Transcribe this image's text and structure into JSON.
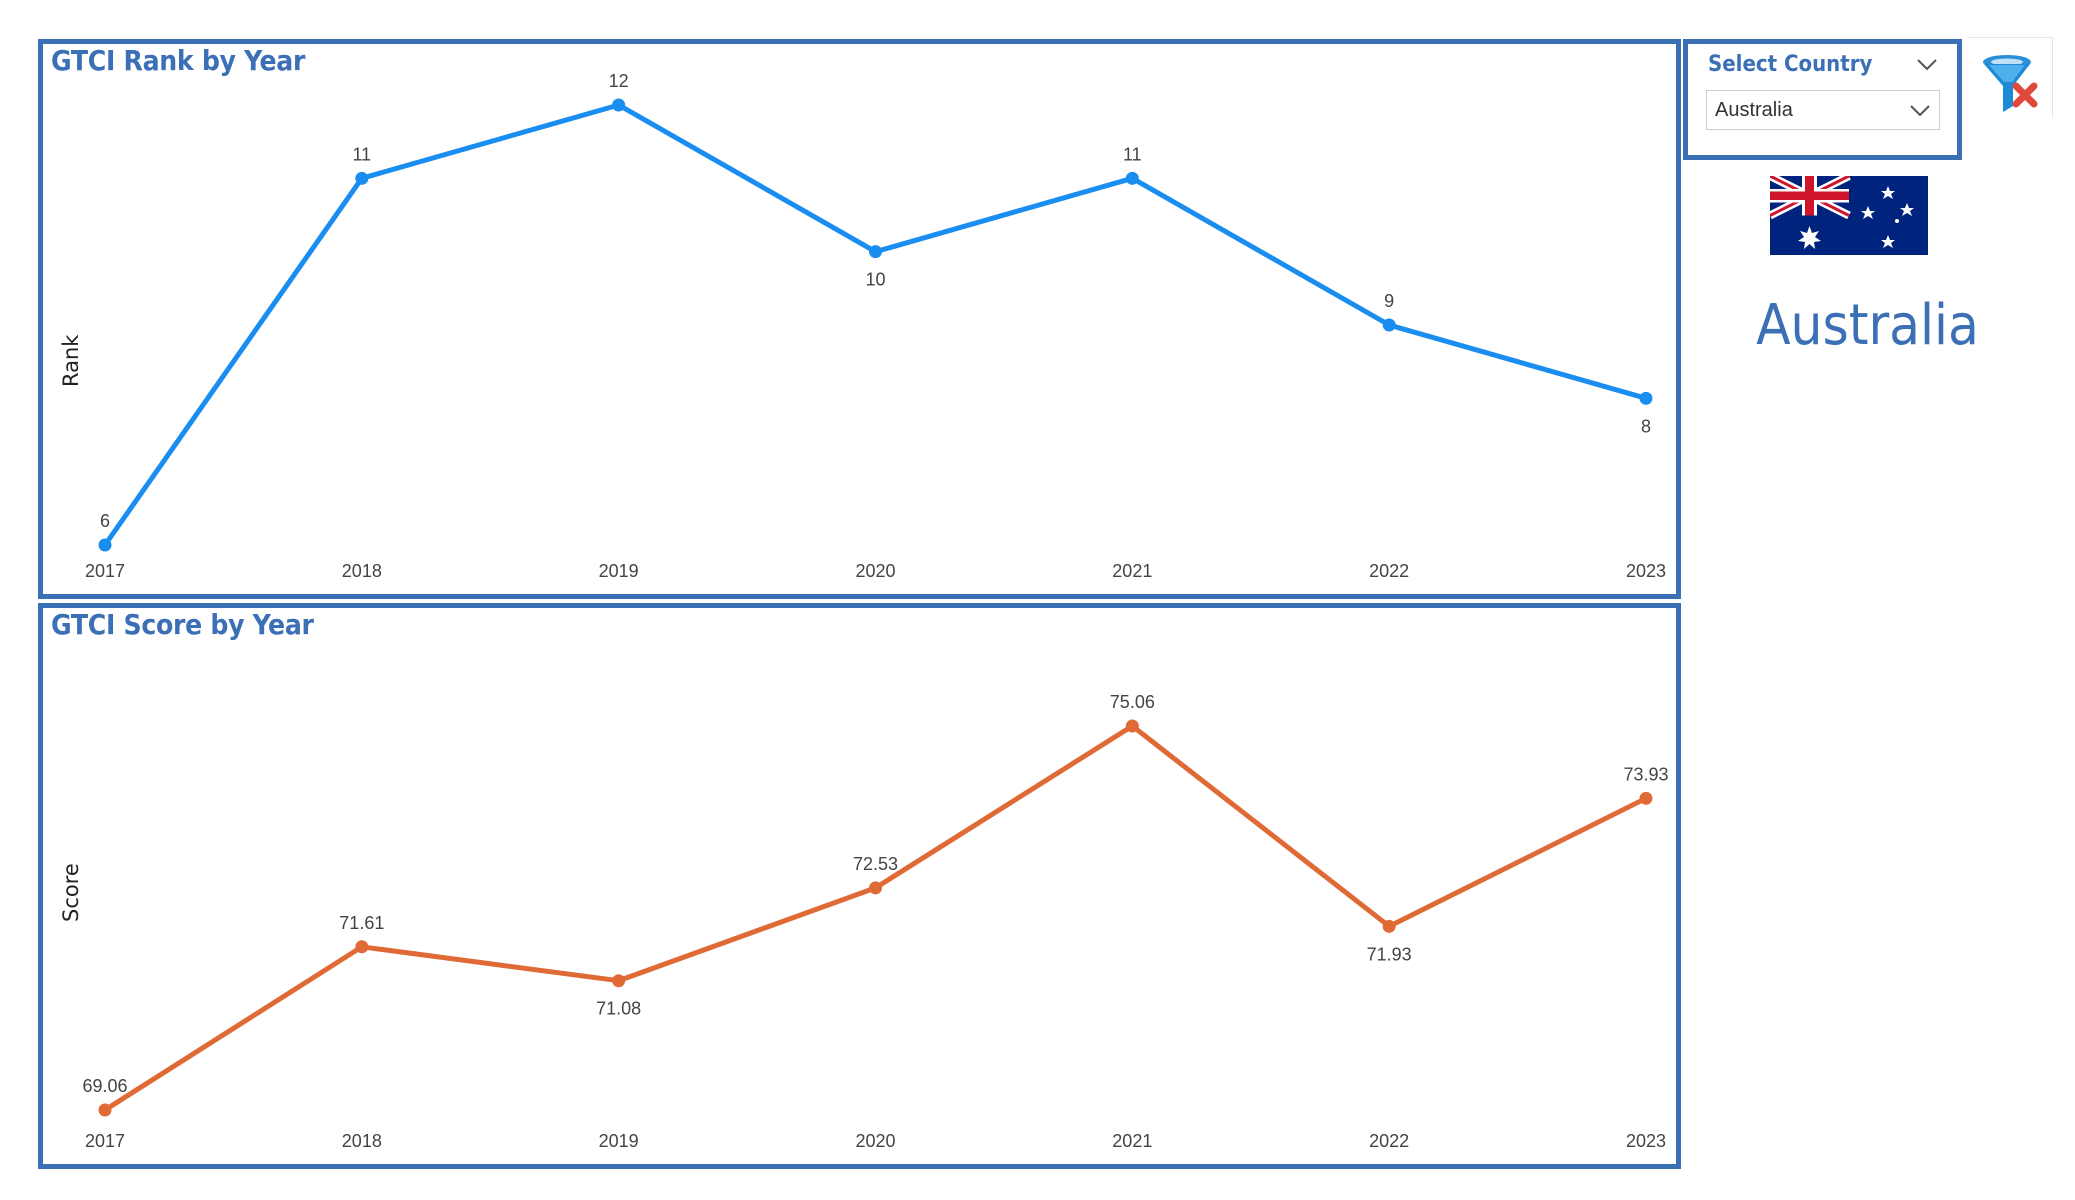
{
  "slicer": {
    "title": "Select Country",
    "selected": "Australia"
  },
  "country_display": "Australia",
  "flag": {
    "name": "australia-flag",
    "colors": {
      "blue": "#00247D",
      "red": "#CF142B",
      "white": "#FFFFFF"
    }
  },
  "clear_filter": {
    "icon": "funnel-clear-icon",
    "colors": {
      "funnel": "#1e8ad6",
      "x": "#e0483a"
    }
  },
  "theme": {
    "border": "#3b6fb6",
    "rank_line": "#1a8df0",
    "score_line": "#e06a35"
  },
  "chart_data": [
    {
      "type": "line",
      "title": "GTCI Rank by Year",
      "ylabel": "Rank",
      "x": [
        "2017",
        "2018",
        "2019",
        "2020",
        "2021",
        "2022",
        "2023"
      ],
      "series": [
        {
          "values": [
            6,
            11,
            12,
            10,
            11,
            9,
            8
          ],
          "labels": [
            "6",
            "11",
            "12",
            "10",
            "11",
            "9",
            "8"
          ]
        }
      ],
      "ylim": [
        6,
        12
      ],
      "grid": false
    },
    {
      "type": "line",
      "title": "GTCI Score by Year",
      "ylabel": "Score",
      "x": [
        "2017",
        "2018",
        "2019",
        "2020",
        "2021",
        "2022",
        "2023"
      ],
      "series": [
        {
          "values": [
            69.06,
            71.61,
            71.08,
            72.53,
            75.06,
            71.93,
            73.93
          ],
          "labels": [
            "69.06",
            "71.61",
            "71.08",
            "72.53",
            "75.06",
            "71.93",
            "73.93"
          ]
        }
      ],
      "ylim": [
        69.06,
        75.06
      ],
      "grid": false
    }
  ]
}
